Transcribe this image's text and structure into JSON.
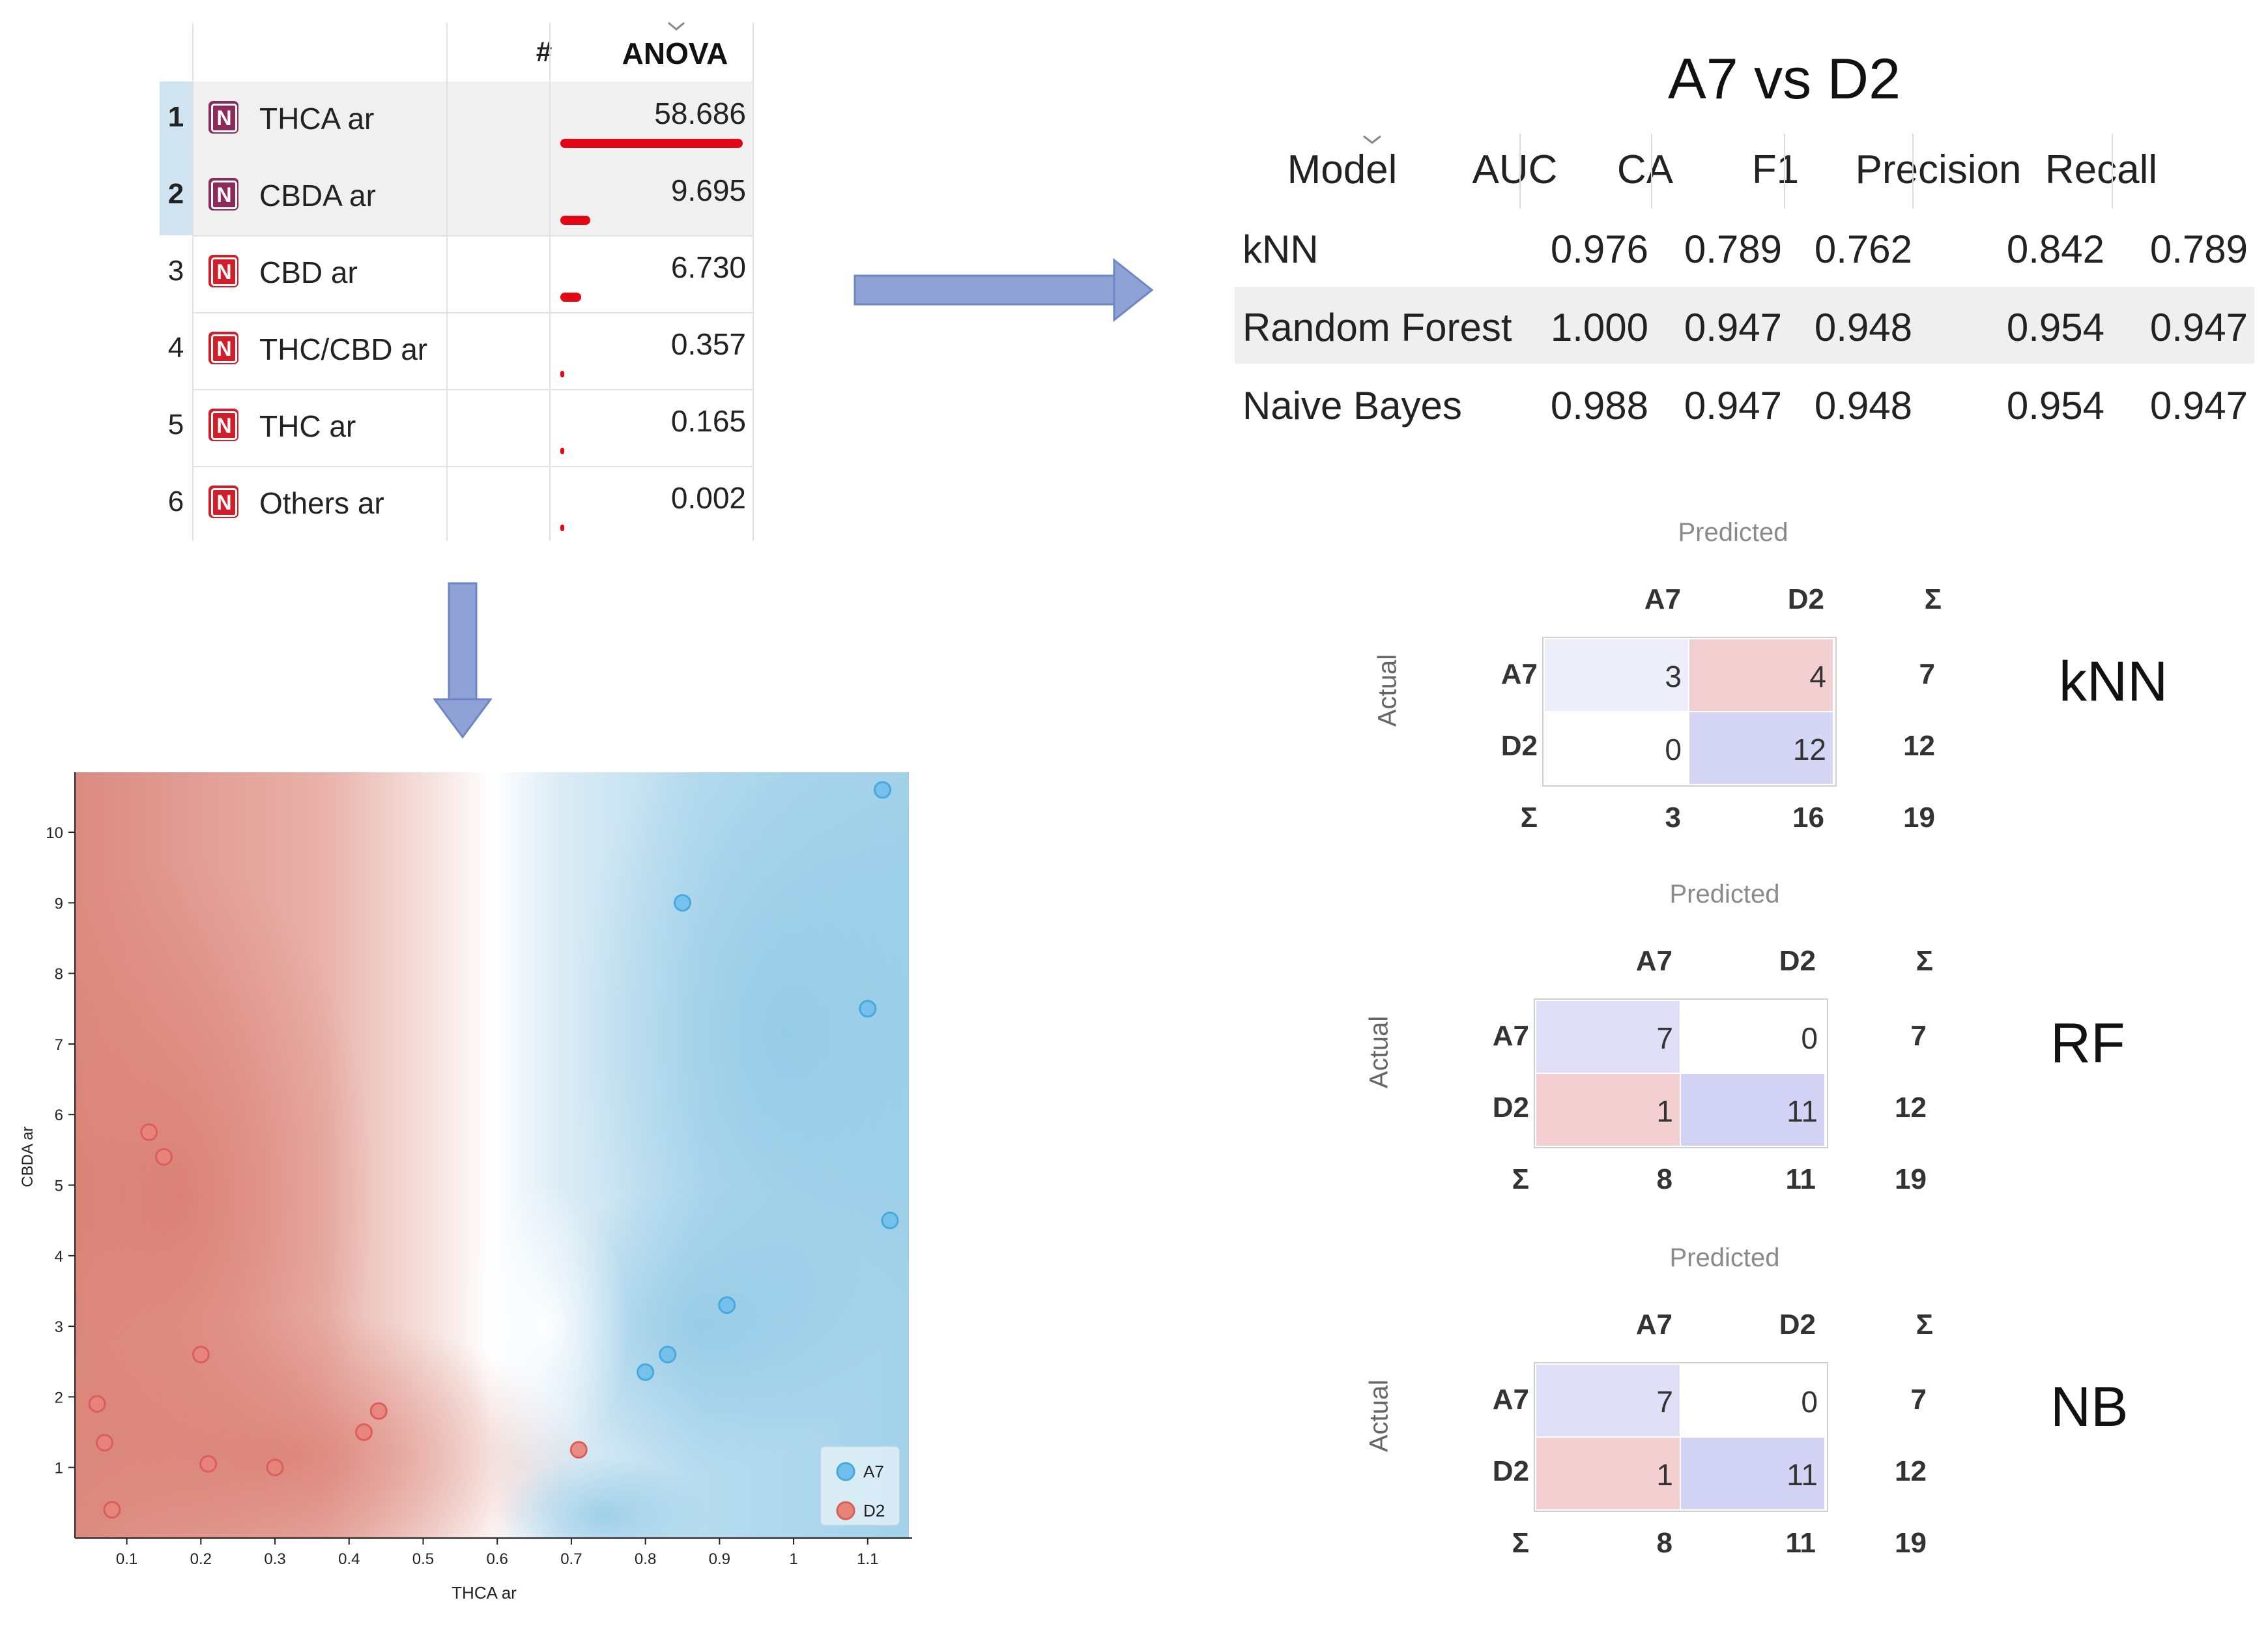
{
  "rank_table": {
    "hash_header": "#",
    "score_header": "ANOVA",
    "rows": [
      {
        "rank": "1",
        "badge": "N",
        "name": "THCA ar",
        "value": "58.686",
        "score": 58.686,
        "selected": true
      },
      {
        "rank": "2",
        "badge": "N",
        "name": "CBDA ar",
        "value": "9.695",
        "score": 9.695,
        "selected": true
      },
      {
        "rank": "3",
        "badge": "N",
        "name": "CBD ar",
        "value": "6.730",
        "score": 6.73,
        "selected": false
      },
      {
        "rank": "4",
        "badge": "N",
        "name": "THC/CBD ar",
        "value": "0.357",
        "score": 0.357,
        "selected": false
      },
      {
        "rank": "5",
        "badge": "N",
        "name": "THC ar",
        "value": "0.165",
        "score": 0.165,
        "selected": false
      },
      {
        "rank": "6",
        "badge": "N",
        "name": "Others ar",
        "value": "0.002",
        "score": 0.002,
        "selected": false
      }
    ],
    "bar_color": "#e30613"
  },
  "metrics": {
    "title": "A7 vs D2",
    "headers": [
      "Model",
      "AUC",
      "CA",
      "F1",
      "Precision",
      "Recall"
    ],
    "rows": [
      {
        "model": "kNN",
        "auc": "0.976",
        "ca": "0.789",
        "f1": "0.762",
        "precision": "0.842",
        "recall": "0.789"
      },
      {
        "model": "Random Forest",
        "auc": "1.000",
        "ca": "0.947",
        "f1": "0.948",
        "precision": "0.954",
        "recall": "0.947"
      },
      {
        "model": "Naive Bayes",
        "auc": "0.988",
        "ca": "0.947",
        "f1": "0.948",
        "precision": "0.954",
        "recall": "0.947"
      }
    ]
  },
  "confusion_matrices": [
    {
      "label": "kNN",
      "predicted": "Predicted",
      "actual": "Actual",
      "classes": [
        "A7",
        "D2"
      ],
      "sigma": "Σ",
      "cells": [
        [
          "3",
          "4"
        ],
        [
          "0",
          "12"
        ]
      ],
      "row_totals": [
        "7",
        "12"
      ],
      "col_totals": [
        "3",
        "16"
      ],
      "total": "19",
      "shades": [
        [
          "#eeeefb",
          "#f3cfd1"
        ],
        [
          "#ffffff",
          "#d5d5f5"
        ]
      ]
    },
    {
      "label": "RF",
      "predicted": "Predicted",
      "actual": "Actual",
      "classes": [
        "A7",
        "D2"
      ],
      "sigma": "Σ",
      "cells": [
        [
          "7",
          "0"
        ],
        [
          "1",
          "11"
        ]
      ],
      "row_totals": [
        "7",
        "12"
      ],
      "col_totals": [
        "8",
        "11"
      ],
      "total": "19",
      "shades": [
        [
          "#dfdff8",
          "#ffffff"
        ],
        [
          "#f3cfd1",
          "#d3d3f5"
        ]
      ]
    },
    {
      "label": "NB",
      "predicted": "Predicted",
      "actual": "Actual",
      "classes": [
        "A7",
        "D2"
      ],
      "sigma": "Σ",
      "cells": [
        [
          "7",
          "0"
        ],
        [
          "1",
          "11"
        ]
      ],
      "row_totals": [
        "7",
        "12"
      ],
      "col_totals": [
        "8",
        "11"
      ],
      "total": "19",
      "shades": [
        [
          "#dfdff8",
          "#ffffff"
        ],
        [
          "#f3cfd1",
          "#d3d3f5"
        ]
      ]
    }
  ],
  "chart_data": {
    "type": "scatter",
    "xlabel": "THCA ar",
    "ylabel": "CBDA ar",
    "xlim": [
      0.03,
      1.16
    ],
    "ylim": [
      0,
      10.85
    ],
    "xticks": [
      "0.1",
      "0.2",
      "0.3",
      "0.4",
      "0.5",
      "0.6",
      "0.7",
      "0.8",
      "0.9",
      "1",
      "1.1"
    ],
    "xtick_values": [
      0.1,
      0.2,
      0.3,
      0.4,
      0.5,
      0.6,
      0.7,
      0.8,
      0.9,
      1.0,
      1.1
    ],
    "yticks": [
      "1",
      "2",
      "3",
      "4",
      "5",
      "6",
      "7",
      "8",
      "9",
      "10"
    ],
    "ytick_values": [
      1,
      2,
      3,
      4,
      5,
      6,
      7,
      8,
      9,
      10
    ],
    "legend_position": "bottom-right",
    "series": [
      {
        "name": "A7",
        "color": "#6fc0ec",
        "edge": "#4aa8dd",
        "x": [
          1.12,
          0.85,
          1.1,
          1.13,
          0.91,
          0.83,
          0.8
        ],
        "y": [
          10.6,
          9.0,
          7.5,
          4.5,
          3.3,
          2.6,
          2.35
        ]
      },
      {
        "name": "D2",
        "color": "#e8837a",
        "edge": "#d9605a",
        "x": [
          0.13,
          0.15,
          0.2,
          0.06,
          0.07,
          0.08,
          0.21,
          0.3,
          0.42,
          0.44,
          0.71
        ],
        "y": [
          5.75,
          5.4,
          2.6,
          1.9,
          1.35,
          0.4,
          1.05,
          1.0,
          1.5,
          1.8,
          1.25
        ]
      }
    ],
    "region_colors": {
      "A7": "#a8d4e8",
      "D2": "#dc8a80"
    }
  }
}
